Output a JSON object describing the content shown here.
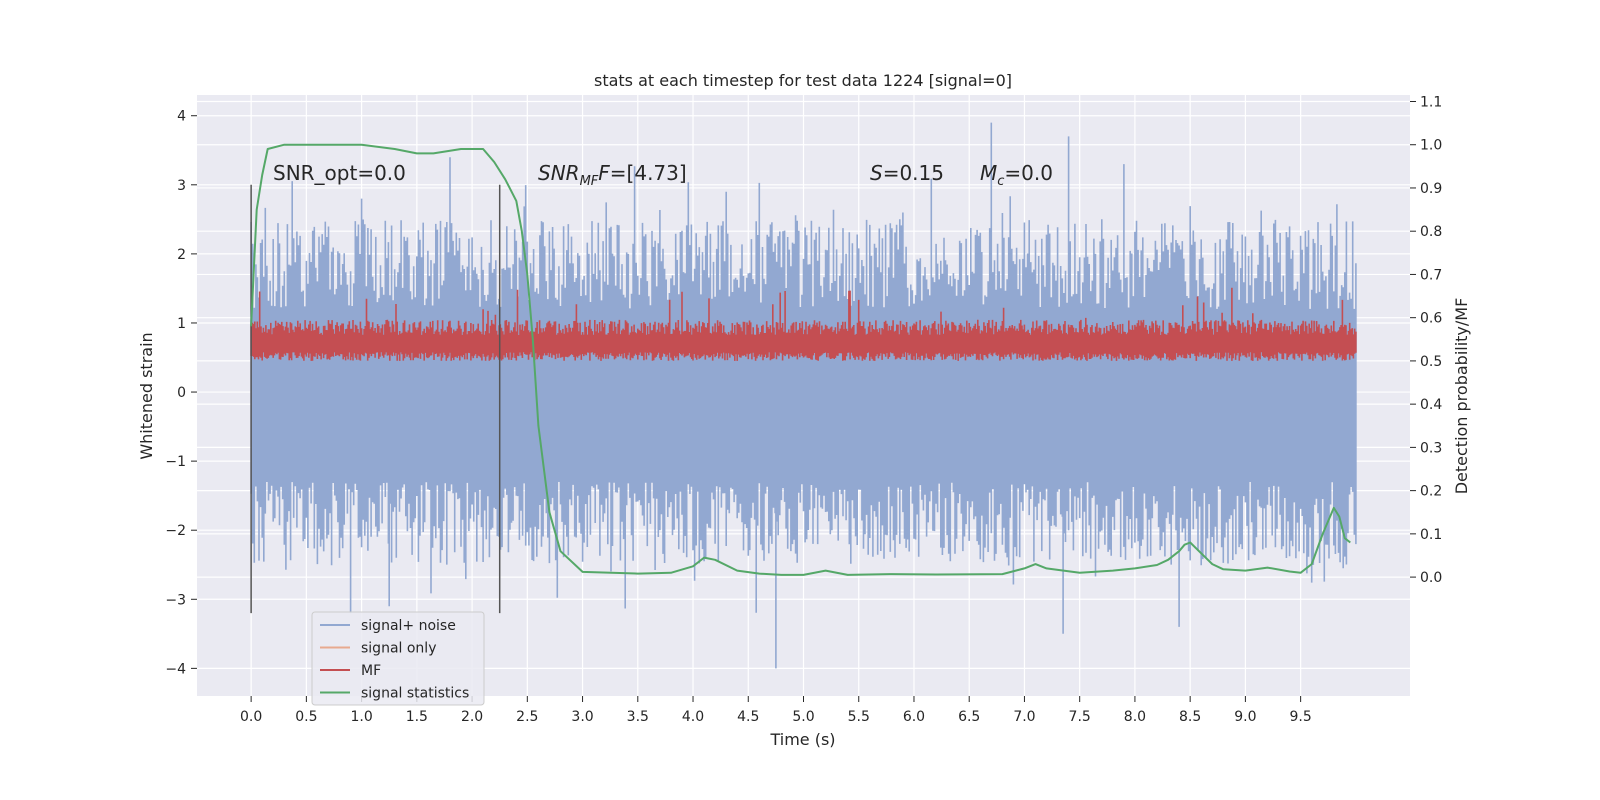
{
  "chart_data": {
    "type": "line",
    "title": "stats at each timestep for test data 1224 [signal=0]",
    "xlabel": "Time (s)",
    "ylabel": "Whitened strain",
    "ylabel_right": "Detection probability/MF",
    "xlim": [
      -0.49,
      10.49
    ],
    "ylim": [
      -4.4,
      4.3
    ],
    "ylim_right": [
      -0.275,
      1.115
    ],
    "x_ticks": [
      "0.0",
      "0.5",
      "1.0",
      "1.5",
      "2.0",
      "2.5",
      "3.0",
      "3.5",
      "4.0",
      "4.5",
      "5.0",
      "5.5",
      "6.0",
      "6.5",
      "7.0",
      "7.5",
      "8.0",
      "8.5",
      "9.0",
      "9.5"
    ],
    "y_ticks": [
      "4",
      "3",
      "2",
      "1",
      "0",
      "−1",
      "−2",
      "−3",
      "−4"
    ],
    "y_ticks_right": [
      "1.1",
      "1.0",
      "0.9",
      "0.8",
      "0.7",
      "0.6",
      "0.5",
      "0.4",
      "0.3",
      "0.2",
      "0.1",
      "0.0"
    ],
    "annotations": {
      "snr_opt": "SNR_opt=0.0",
      "snr_mf_sym": "SNR",
      "snr_mf_sub": "MF",
      "snr_mf_sym2": "F",
      "snr_mf_val": "=[4.73]",
      "s_sym": "S",
      "s_val": "=0.15",
      "mc_sym": "M",
      "mc_sub": "c",
      "mc_val": "=0.0"
    },
    "vlines_x": [
      0.0,
      2.25
    ],
    "legend": {
      "placement": "lower-left",
      "entries": [
        {
          "label": "signal+ noise",
          "color": "#92a8d1"
        },
        {
          "label": "signal only",
          "color": "#e8a98f"
        },
        {
          "label": "MF",
          "color": "#c44e52"
        },
        {
          "label": "signal statistics",
          "color": "#55a868"
        }
      ]
    },
    "series": [
      {
        "name": "signal+ noise",
        "axis": "left",
        "color": "#92a8d1",
        "x_range": [
          0.0,
          10.0
        ],
        "envelope": {
          "upper": 1.2,
          "lower": -1.3,
          "spike_max": 3.9,
          "spike_min": -4.0
        },
        "peaks": [
          [
            1.8,
            3.4
          ],
          [
            4.3,
            2.9
          ],
          [
            6.7,
            3.9
          ],
          [
            7.4,
            3.7
          ],
          [
            7.9,
            3.3
          ],
          [
            4.75,
            -4.0
          ],
          [
            7.35,
            -3.5
          ],
          [
            8.4,
            -3.4
          ],
          [
            0.9,
            -3.2
          ],
          [
            1.25,
            -3.1
          ]
        ]
      },
      {
        "name": "MF",
        "axis": "right",
        "color": "#c44e52",
        "x_range": [
          0.0,
          10.0
        ],
        "band": [
          0.51,
          0.58
        ],
        "spike_max": 0.67
      },
      {
        "name": "signal statistics",
        "axis": "right",
        "color": "#55a868",
        "x": [
          0.0,
          0.05,
          0.1,
          0.15,
          0.3,
          0.6,
          1.0,
          1.3,
          1.5,
          1.65,
          1.9,
          2.1,
          2.2,
          2.3,
          2.4,
          2.45,
          2.5,
          2.55,
          2.6,
          2.7,
          2.8,
          3.0,
          3.5,
          3.8,
          4.0,
          4.1,
          4.2,
          4.4,
          4.6,
          4.8,
          5.0,
          5.2,
          5.4,
          5.8,
          6.2,
          6.8,
          7.0,
          7.1,
          7.2,
          7.5,
          7.8,
          8.0,
          8.2,
          8.3,
          8.4,
          8.45,
          8.5,
          8.6,
          8.7,
          8.8,
          9.0,
          9.2,
          9.4,
          9.5,
          9.6,
          9.7,
          9.8,
          9.85,
          9.9,
          9.95
        ],
        "values": [
          0.58,
          0.85,
          0.93,
          0.99,
          1.0,
          1.0,
          1.0,
          0.99,
          0.98,
          0.98,
          0.99,
          0.99,
          0.96,
          0.92,
          0.87,
          0.8,
          0.7,
          0.55,
          0.35,
          0.15,
          0.06,
          0.012,
          0.008,
          0.01,
          0.025,
          0.045,
          0.04,
          0.015,
          0.008,
          0.005,
          0.005,
          0.015,
          0.005,
          0.007,
          0.006,
          0.007,
          0.02,
          0.03,
          0.02,
          0.01,
          0.015,
          0.02,
          0.028,
          0.04,
          0.06,
          0.075,
          0.08,
          0.055,
          0.03,
          0.018,
          0.015,
          0.022,
          0.013,
          0.01,
          0.03,
          0.1,
          0.16,
          0.14,
          0.09,
          0.08
        ]
      }
    ]
  }
}
